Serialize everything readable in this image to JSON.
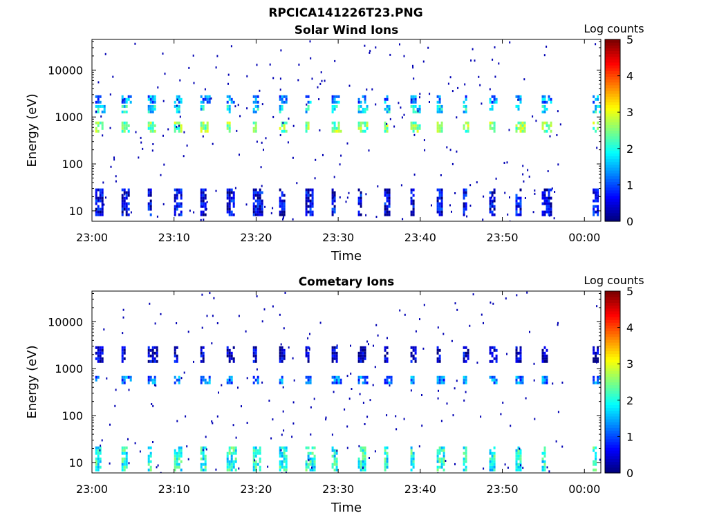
{
  "figure": {
    "title": "RPCICA141226T23.PNG"
  },
  "chart_data": [
    {
      "type": "heatmap",
      "title": "Solar Wind Ions",
      "xlabel": "Time",
      "ylabel": "Energy (eV)",
      "xlim": [
        "23:00",
        "00:02"
      ],
      "ylim": [
        6,
        45000
      ],
      "yscale": "log",
      "x_ticks": [
        "23:00",
        "23:10",
        "23:20",
        "23:30",
        "23:40",
        "23:50",
        "00:00"
      ],
      "y_ticks": [
        "10",
        "100",
        "1000",
        "10000"
      ],
      "colorbar": {
        "label": "Log counts",
        "min": 0,
        "max": 5,
        "ticks": [
          "0",
          "1",
          "2",
          "3",
          "4",
          "5"
        ],
        "colormap": "jet"
      },
      "sweep_start_minutes": [
        0.4,
        3.6,
        6.8,
        10.0,
        13.2,
        16.4,
        19.6,
        22.8,
        26.0,
        29.2,
        32.4,
        35.6,
        38.8,
        42.0,
        45.2,
        48.4,
        51.6,
        54.8,
        61.0
      ],
      "bands": [
        {
          "emin": 500,
          "emax": 800,
          "log_counts": 2.5
        },
        {
          "emin": 1300,
          "emax": 1800,
          "log_counts": 1.8
        },
        {
          "emin": 2200,
          "emax": 2900,
          "log_counts": 1.3
        },
        {
          "emin": 8,
          "emax": 30,
          "log_counts": 0.5
        }
      ],
      "grid": false
    },
    {
      "type": "heatmap",
      "title": "Cometary Ions",
      "xlabel": "Time",
      "ylabel": "Energy (eV)",
      "xlim": [
        "23:00",
        "00:02"
      ],
      "ylim": [
        6,
        45000
      ],
      "yscale": "log",
      "x_ticks": [
        "23:00",
        "23:10",
        "23:20",
        "23:30",
        "23:40",
        "23:50",
        "00:00"
      ],
      "y_ticks": [
        "10",
        "100",
        "1000",
        "10000"
      ],
      "colorbar": {
        "label": "Log counts",
        "min": 0,
        "max": 5,
        "ticks": [
          "0",
          "1",
          "2",
          "3",
          "4",
          "5"
        ],
        "colormap": "jet"
      },
      "sweep_start_minutes": [
        0.4,
        3.6,
        6.8,
        10.0,
        13.2,
        16.4,
        19.6,
        22.8,
        26.0,
        29.2,
        32.4,
        35.6,
        38.8,
        42.0,
        45.2,
        48.4,
        51.6,
        54.8,
        61.0
      ],
      "bands": [
        {
          "emin": 7,
          "emax": 22,
          "log_counts": 2.0
        },
        {
          "emin": 520,
          "emax": 700,
          "log_counts": 1.2
        },
        {
          "emin": 1400,
          "emax": 3000,
          "log_counts": 0.3
        }
      ],
      "grid": false
    }
  ]
}
